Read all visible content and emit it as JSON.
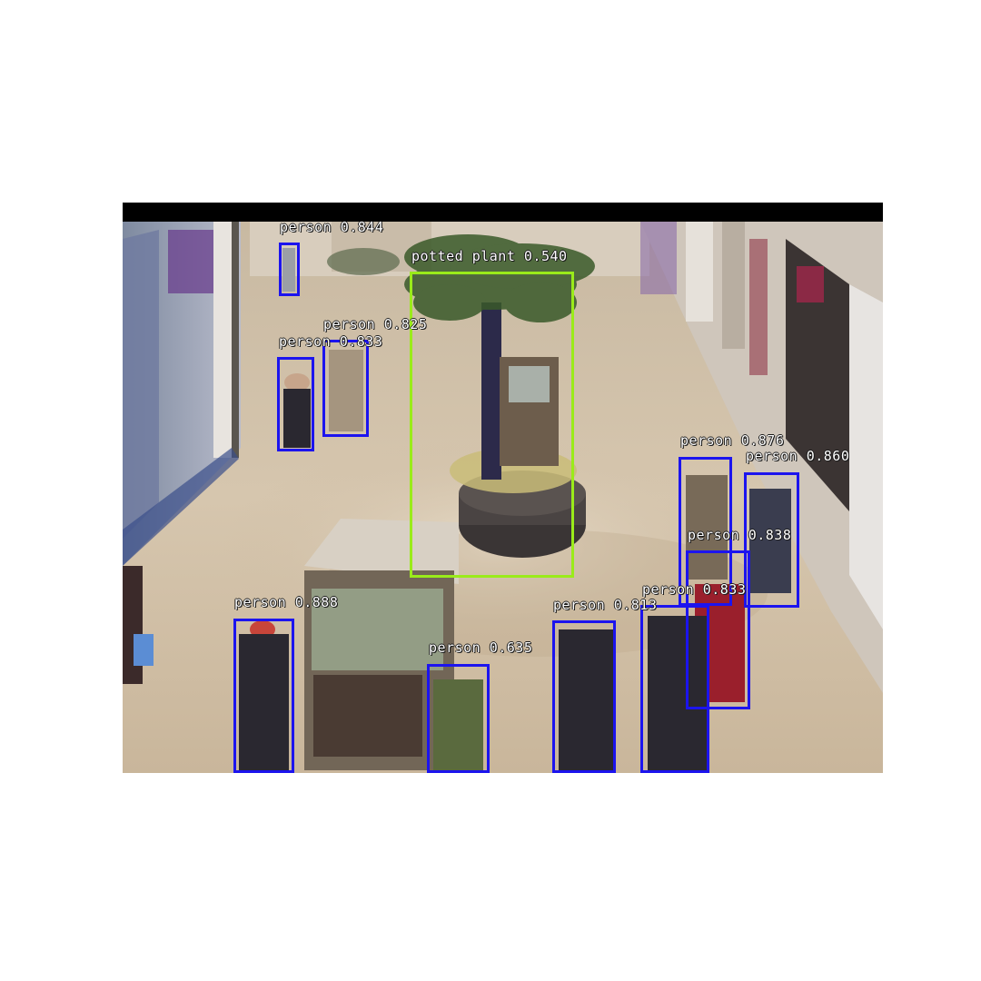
{
  "colors": {
    "page_background": "#ffffff",
    "top_bar": "#000000",
    "person_box": "#1c14ee",
    "plant_box": "#9aeb1a",
    "label_text": "#ffffff"
  },
  "scene": {
    "description_tag": "shopping-mall-surveillance-frame"
  },
  "detections": [
    {
      "id": "d1",
      "label": "person 0.844",
      "class": "person",
      "score": 0.844
    },
    {
      "id": "d2",
      "label": "potted plant 0.540",
      "class": "potted plant",
      "score": 0.54
    },
    {
      "id": "d3",
      "label": "person 0.825",
      "class": "person",
      "score": 0.825
    },
    {
      "id": "d4",
      "label": "person 0.833",
      "class": "person",
      "score": 0.833
    },
    {
      "id": "d5",
      "label": "person 0.876",
      "class": "person",
      "score": 0.876
    },
    {
      "id": "d6",
      "label": "person 0.860",
      "class": "person",
      "score": 0.86
    },
    {
      "id": "d7",
      "label": "person 0.838",
      "class": "person",
      "score": 0.838
    },
    {
      "id": "d8",
      "label": "person 0.833",
      "class": "person",
      "score": 0.833
    },
    {
      "id": "d9",
      "label": "person 0.888",
      "class": "person",
      "score": 0.888
    },
    {
      "id": "d10",
      "label": "person 0.813",
      "class": "person",
      "score": 0.813
    },
    {
      "id": "d11",
      "label": "person 0.635",
      "class": "person",
      "score": 0.635
    }
  ]
}
